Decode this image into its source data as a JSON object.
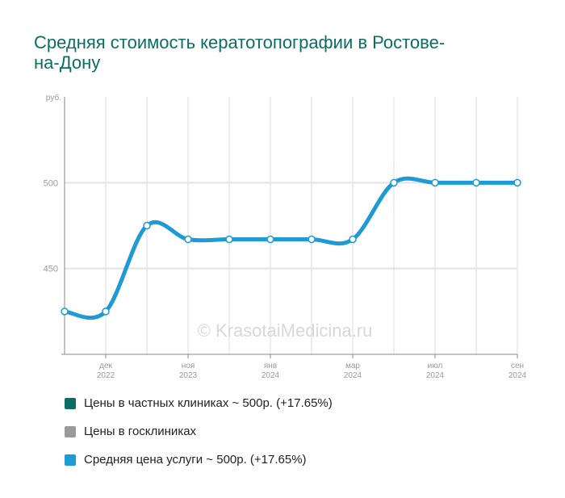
{
  "chart_data": {
    "type": "line",
    "title": "Средняя стоимость кератотопографии в Ростове-на-Дону",
    "ylabel": "руб.",
    "ylim": [
      400,
      550
    ],
    "yticks": [
      450,
      500
    ],
    "x_tick_labels": [
      {
        "index": 1,
        "month": "дек",
        "year": "2022"
      },
      {
        "index": 3,
        "month": "ноя",
        "year": "2023"
      },
      {
        "index": 5,
        "month": "янв",
        "year": "2024"
      },
      {
        "index": 7,
        "month": "мар",
        "year": "2024"
      },
      {
        "index": 9,
        "month": "июл",
        "year": "2024"
      },
      {
        "index": 11,
        "month": "сен",
        "year": "2024"
      }
    ],
    "series": [
      {
        "name": "Средняя цена услуги",
        "color": "#1e9ad6",
        "values": [
          425,
          425,
          475,
          467,
          467,
          467,
          467,
          467,
          500,
          500,
          500,
          500
        ]
      }
    ],
    "watermark": "© KrasotaiMedicina.ru",
    "grid": true,
    "legend_position": "bottom"
  },
  "legend": [
    {
      "label": "Цены в частных клиниках ~ 500р. (+17.65%)",
      "color": "#0b6e62"
    },
    {
      "label": "Цены в госклиниках",
      "color": "#9a9a9a"
    },
    {
      "label": "Средняя цена услуги ~ 500р. (+17.65%)",
      "color": "#1e9ad6"
    }
  ]
}
